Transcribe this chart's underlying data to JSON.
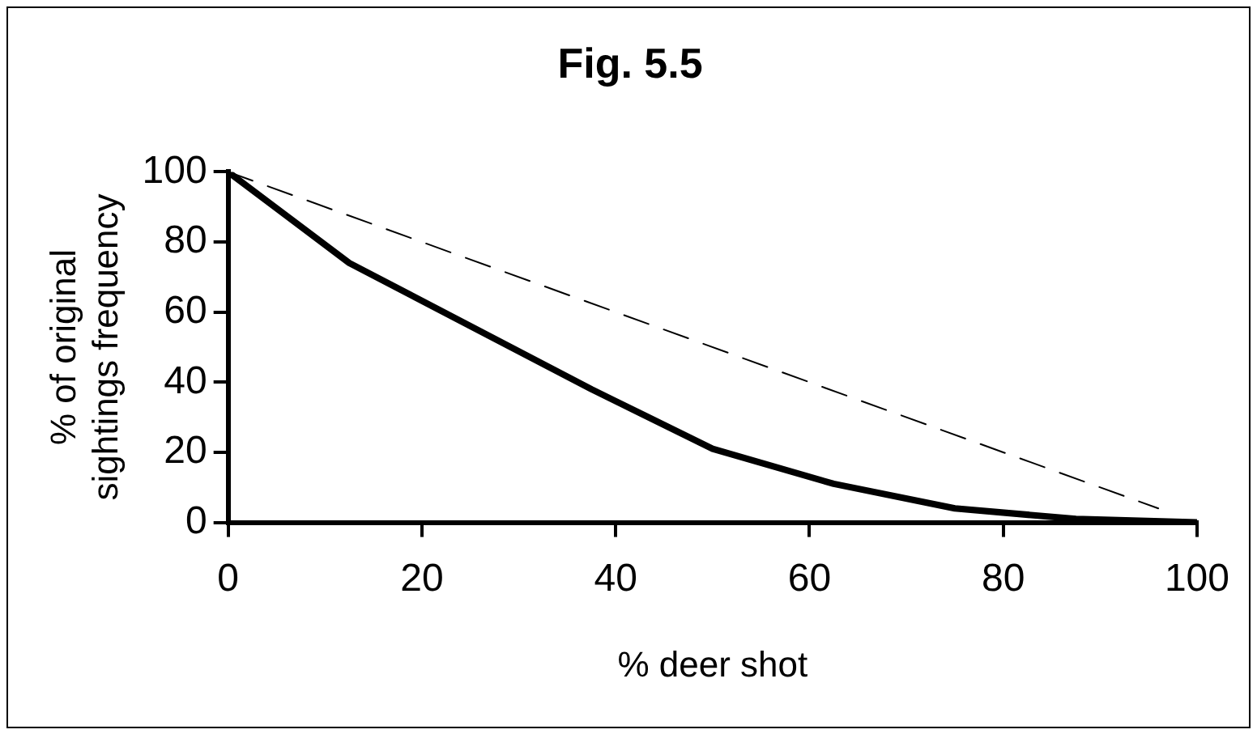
{
  "chart_data": {
    "type": "line",
    "title": "Fig. 5.5",
    "xlabel": "% deer shot",
    "ylabel": "% of original sightings frequency",
    "marker": "none",
    "xlim": [
      0,
      100
    ],
    "xticks": [
      0,
      20,
      40,
      60,
      80,
      100
    ],
    "ylim": [
      0,
      100
    ],
    "yticks": [
      0,
      20,
      40,
      60,
      80,
      100
    ],
    "series": [
      {
        "color": "#000000",
        "line_style": "solid",
        "x": [
          0,
          12.5,
          37.5,
          50,
          62.5,
          75,
          87.5,
          100
        ],
        "values": [
          100,
          74,
          38,
          21,
          11,
          4,
          1,
          0
        ]
      },
      {
        "color": "#000000",
        "line_style": "dashed",
        "x": [
          0,
          96
        ],
        "values": [
          100,
          4
        ]
      }
    ]
  }
}
